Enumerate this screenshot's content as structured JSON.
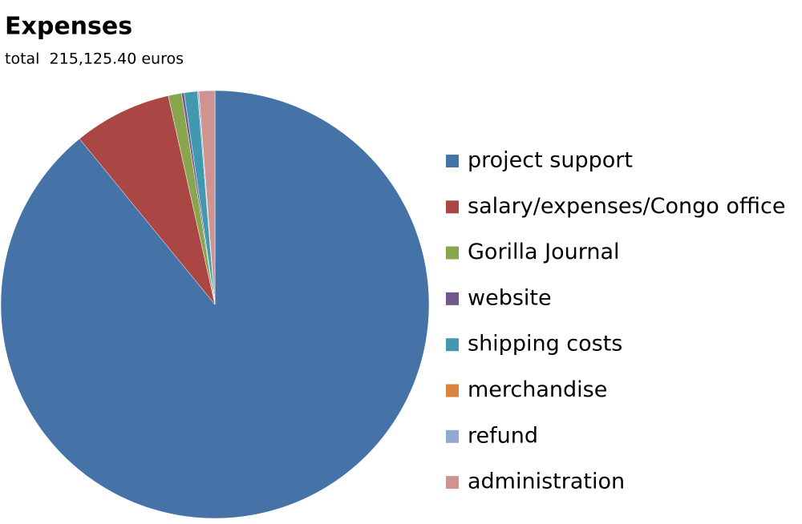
{
  "chart_data": {
    "type": "pie",
    "title": "Expenses",
    "subtitle": "total  215,125.40 euros",
    "categories": [
      "project support",
      "salary/expenses/Congo office",
      "Gorilla Journal",
      "website",
      "shipping costs",
      "merchandise",
      "refund",
      "administration"
    ],
    "values": [
      89.1,
      7.4,
      1.0,
      0.2,
      1.0,
      0,
      0.1,
      1.2
    ],
    "colors": [
      "#4572a7",
      "#aa4643",
      "#89a54e",
      "#71588f",
      "#4198af",
      "#db843d",
      "#93a9cf",
      "#d19392"
    ],
    "legend": "right"
  }
}
